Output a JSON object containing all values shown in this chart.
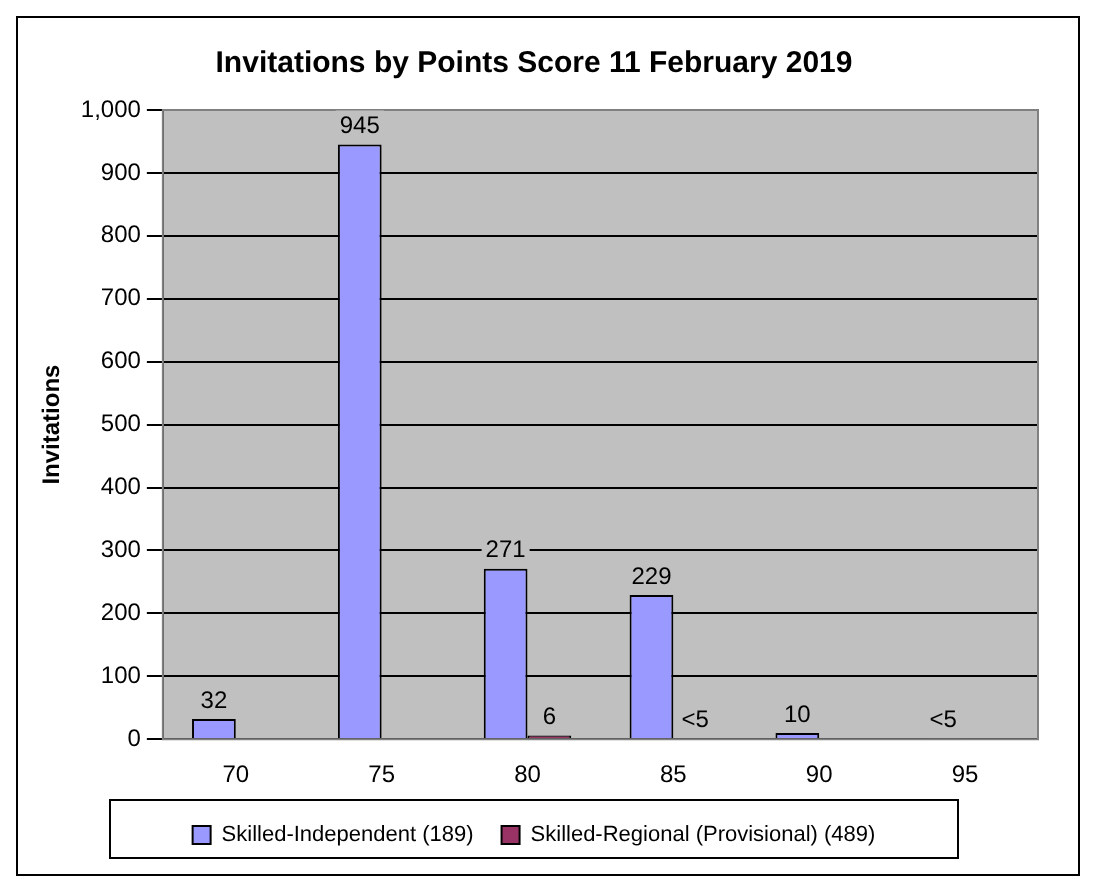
{
  "chart_data": {
    "type": "bar",
    "title": "Invitations by Points Score 11 February 2019",
    "ylabel": "Invitations",
    "categories": [
      "70",
      "75",
      "80",
      "85",
      "90",
      "95"
    ],
    "series": [
      {
        "name": "Skilled-Independent (189)",
        "color": "#9999ff",
        "values": [
          32,
          945,
          271,
          229,
          10,
          2
        ],
        "value_labels": [
          "32",
          "945",
          "271",
          "229",
          "10",
          "<5"
        ]
      },
      {
        "name": "Skilled-Regional (Provisional) (489)",
        "color": "#993366",
        "values": [
          null,
          null,
          6,
          2,
          null,
          null
        ],
        "value_labels": [
          null,
          null,
          "6",
          "<5",
          null,
          null
        ]
      }
    ],
    "ylim": [
      0,
      1000
    ],
    "yticks": [
      0,
      100,
      200,
      300,
      400,
      500,
      600,
      700,
      800,
      900,
      {
        "value": 1000,
        "label": "1,000"
      }
    ],
    "grid": "y",
    "legend": "bottom"
  }
}
